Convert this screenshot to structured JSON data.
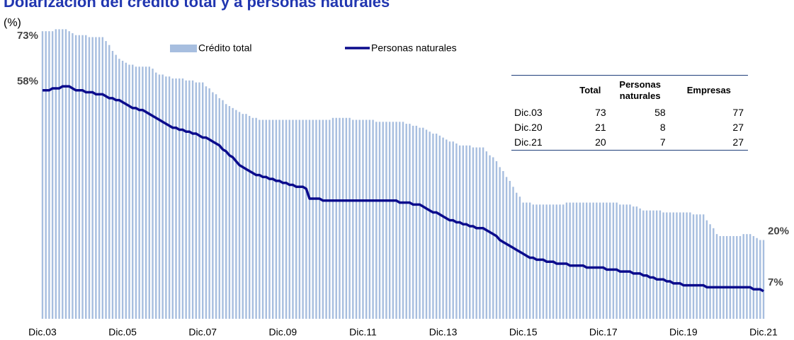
{
  "chart_data": {
    "type": "bar",
    "title": "Dolarización del crédito total y a personas naturales",
    "subtitle": "(%)",
    "ylim": [
      0,
      75
    ],
    "categories": [
      "Dic.03",
      null,
      null,
      null,
      null,
      null,
      null,
      null,
      null,
      null,
      null,
      null,
      null,
      null,
      null,
      null,
      null,
      null,
      null,
      null,
      null,
      null,
      null,
      null,
      "Dic.05",
      null,
      null,
      null,
      null,
      null,
      null,
      null,
      null,
      null,
      null,
      null,
      null,
      null,
      null,
      null,
      null,
      null,
      null,
      null,
      null,
      null,
      null,
      null,
      "Dic.07",
      null,
      null,
      null,
      null,
      null,
      null,
      null,
      null,
      null,
      null,
      null,
      null,
      null,
      null,
      null,
      null,
      null,
      null,
      null,
      null,
      null,
      null,
      null,
      "Dic.09",
      null,
      null,
      null,
      null,
      null,
      null,
      null,
      null,
      null,
      null,
      null,
      null,
      null,
      null,
      null,
      null,
      null,
      null,
      null,
      null,
      null,
      null,
      null,
      "Dic.11",
      null,
      null,
      null,
      null,
      null,
      null,
      null,
      null,
      null,
      null,
      null,
      null,
      null,
      null,
      null,
      null,
      null,
      null,
      null,
      null,
      null,
      null,
      null,
      "Dic.13",
      null,
      null,
      null,
      null,
      null,
      null,
      null,
      null,
      null,
      null,
      null,
      null,
      null,
      null,
      null,
      null,
      null,
      null,
      null,
      null,
      null,
      null,
      null,
      "Dic.15",
      null,
      null,
      null,
      null,
      null,
      null,
      null,
      null,
      null,
      null,
      null,
      null,
      null,
      null,
      null,
      null,
      null,
      null,
      null,
      null,
      null,
      null,
      null,
      "Dic.17",
      null,
      null,
      null,
      null,
      null,
      null,
      null,
      null,
      null,
      null,
      null,
      null,
      null,
      null,
      null,
      null,
      null,
      null,
      null,
      null,
      null,
      null,
      null,
      "Dic.19",
      null,
      null,
      null,
      null,
      null,
      null,
      null,
      null,
      null,
      null,
      null,
      null,
      null,
      null,
      null,
      null,
      null,
      null,
      null,
      null,
      null,
      null,
      null,
      "Dic.21"
    ],
    "series": [
      {
        "name": "Crédito total",
        "type": "bar",
        "color": "#a7bedf",
        "values": [
          73,
          73,
          73,
          73,
          73.5,
          73.5,
          73.5,
          73.5,
          73,
          72.5,
          72,
          72,
          72,
          72,
          71.5,
          71.5,
          71.5,
          71.5,
          71.5,
          70.5,
          69.5,
          68,
          67,
          66,
          65.5,
          65,
          64.5,
          64.5,
          64,
          64,
          64,
          64,
          64,
          63.5,
          62.5,
          62,
          62,
          61.5,
          61.5,
          61,
          61,
          61,
          61,
          60.5,
          60.5,
          60.5,
          60,
          60,
          60,
          59,
          58.5,
          57.5,
          57,
          56,
          55.5,
          54.5,
          54,
          53.5,
          53,
          52.5,
          52,
          52,
          51.5,
          51,
          51,
          50.5,
          50.5,
          50.5,
          50.5,
          50.5,
          50.5,
          50.5,
          50.5,
          50.5,
          50.5,
          50.5,
          50.5,
          50.5,
          50.5,
          50.5,
          50.5,
          50.5,
          50.5,
          50.5,
          50.5,
          50.5,
          50.5,
          51,
          51,
          51,
          51,
          51,
          51,
          50.5,
          50.5,
          50.5,
          50.5,
          50.5,
          50.5,
          50.5,
          50,
          50,
          50,
          50,
          50,
          50,
          50,
          50,
          50,
          49.5,
          49.5,
          49,
          49,
          48.5,
          48.5,
          48,
          47.5,
          47,
          47,
          46.5,
          46,
          45.5,
          45,
          45,
          44.5,
          44,
          44,
          44,
          44,
          43.5,
          43.5,
          43.5,
          43.5,
          42.5,
          41.5,
          41,
          40,
          38.5,
          37.5,
          36,
          35,
          33.5,
          32,
          31,
          29.5,
          29.5,
          29.5,
          29,
          29,
          29,
          29,
          29,
          29,
          29,
          29,
          29,
          29,
          29.5,
          29.5,
          29.5,
          29.5,
          29.5,
          29.5,
          29.5,
          29.5,
          29.5,
          29.5,
          29.5,
          29.5,
          29.5,
          29.5,
          29.5,
          29.5,
          29,
          29,
          29,
          29,
          28.5,
          28.5,
          28,
          27.5,
          27.5,
          27.5,
          27.5,
          27.5,
          27.5,
          27,
          27,
          27,
          27,
          27,
          27,
          27,
          27,
          27,
          26.5,
          26.5,
          26.5,
          26.5,
          25,
          24,
          23,
          21.5,
          21,
          21,
          21,
          21,
          21,
          21,
          21,
          21.5,
          21.5,
          21.5,
          21,
          20.5,
          20,
          20
        ]
      },
      {
        "name": "Personas naturales",
        "type": "line",
        "color": "#0b0b8c",
        "values": [
          58,
          58,
          58,
          58.5,
          58.5,
          58.5,
          59,
          59,
          59,
          58.5,
          58,
          58,
          58,
          57.5,
          57.5,
          57.5,
          57,
          57,
          57,
          56.5,
          56,
          56,
          55.5,
          55.5,
          55,
          54.5,
          54,
          53.5,
          53.5,
          53,
          53,
          52.5,
          52,
          51.5,
          51,
          50.5,
          50,
          49.5,
          49,
          48.5,
          48.5,
          48,
          48,
          47.5,
          47.5,
          47,
          47,
          46.5,
          46,
          46,
          45.5,
          45,
          44.5,
          44,
          43,
          42.5,
          41.5,
          41,
          40,
          39,
          38.5,
          38,
          37.5,
          37,
          36.5,
          36.5,
          36,
          36,
          35.5,
          35.5,
          35,
          35,
          34.5,
          34.5,
          34,
          34,
          33.5,
          33.5,
          33.5,
          33,
          30.5,
          30.5,
          30.5,
          30.5,
          30,
          30,
          30,
          30,
          30,
          30,
          30,
          30,
          30,
          30,
          30,
          30,
          30,
          30,
          30,
          30,
          30,
          30,
          30,
          30,
          30,
          30,
          30,
          29.5,
          29.5,
          29.5,
          29.5,
          29,
          29,
          29,
          28.5,
          28,
          27.5,
          27,
          27,
          26.5,
          26,
          25.5,
          25,
          25,
          24.5,
          24.5,
          24,
          24,
          23.5,
          23.5,
          23,
          23,
          23,
          22.5,
          22,
          21.5,
          21,
          20,
          19.5,
          19,
          18.5,
          18,
          17.5,
          17,
          16.5,
          16,
          15.5,
          15.5,
          15,
          15,
          15,
          14.5,
          14.5,
          14.5,
          14,
          14,
          14,
          14,
          13.5,
          13.5,
          13.5,
          13.5,
          13.5,
          13,
          13,
          13,
          13,
          13,
          13,
          12.5,
          12.5,
          12.5,
          12.5,
          12,
          12,
          12,
          12,
          11.5,
          11.5,
          11.5,
          11,
          11,
          10.5,
          10.5,
          10,
          10,
          10,
          9.5,
          9.5,
          9,
          9,
          9,
          8.5,
          8.5,
          8.5,
          8.5,
          8.5,
          8.5,
          8.5,
          8,
          8,
          8,
          8,
          8,
          8,
          8,
          8,
          8,
          8,
          8,
          8,
          8,
          8,
          7.5,
          7.5,
          7.5,
          7
        ]
      }
    ],
    "annotations": [
      {
        "category": "Dic.03",
        "value": 73,
        "label": "73%"
      },
      {
        "category": "Dic.03",
        "value": 58,
        "label": "58%"
      },
      {
        "category": "Dic.21",
        "value": 20,
        "label": "20%"
      },
      {
        "category": "Dic.21",
        "value": 7,
        "label": "7%"
      }
    ]
  },
  "table": {
    "columns": [
      "Total",
      "Personas naturales",
      "Empresas"
    ],
    "rows": [
      [
        "Dic.03",
        73,
        58,
        77
      ],
      [
        "Dic.20",
        21,
        8,
        27
      ],
      [
        "Dic.21",
        20,
        7,
        27
      ]
    ]
  }
}
